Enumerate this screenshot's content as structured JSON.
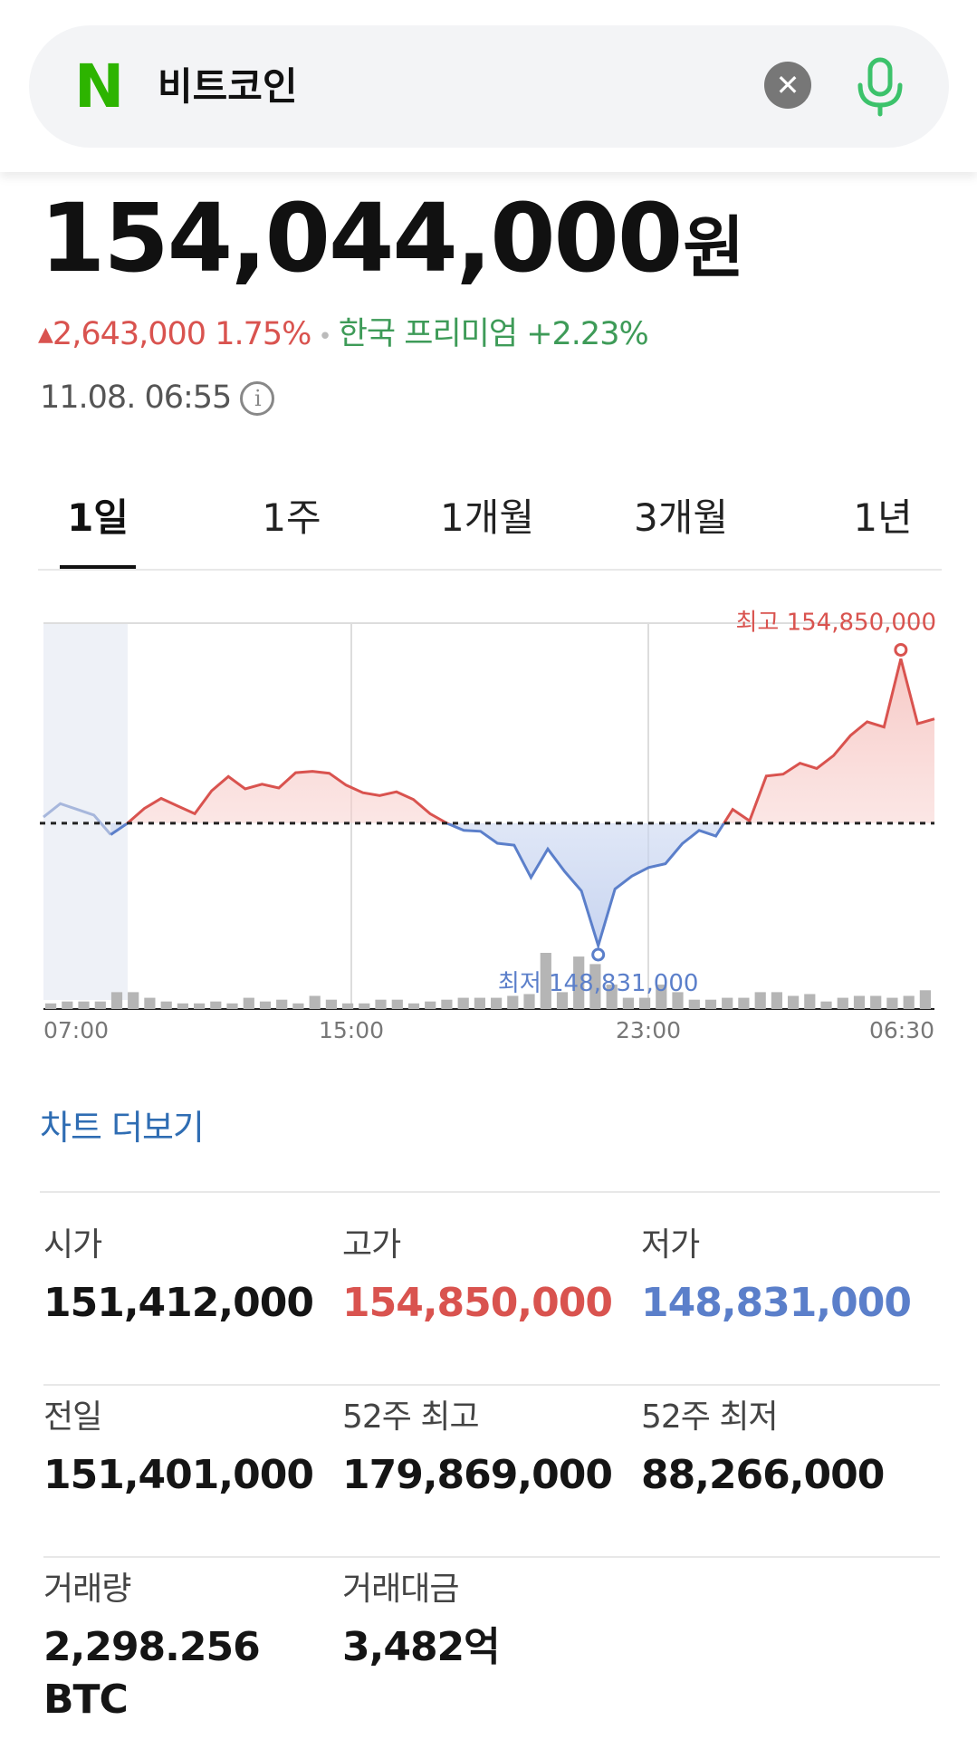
{
  "search": {
    "logo_text": "N",
    "query": "비트코인",
    "clear_icon": "close-icon",
    "mic_icon": "microphone-icon"
  },
  "quote": {
    "price": "154,044,000",
    "unit": "원",
    "change_amount": "2,643,000",
    "change_percent": "1.75%",
    "premium_label": "한국 프리미엄",
    "premium_value": "+2.23%",
    "timestamp": "11.08. 06:55",
    "info_icon": "info-icon"
  },
  "tabs": [
    {
      "label": "1일",
      "active": true
    },
    {
      "label": "1주",
      "active": false
    },
    {
      "label": "1개월",
      "active": false
    },
    {
      "label": "3개월",
      "active": false
    },
    {
      "label": "1년",
      "active": false
    }
  ],
  "chart_data": {
    "type": "line",
    "x_tick_labels": [
      "07:00",
      "15:00",
      "23:00",
      "06:30"
    ],
    "baseline_label": "전일",
    "baseline": 151401000,
    "ylim": [
      147500000,
      155600000
    ],
    "high_label": "최고 154,850,000",
    "low_label": "최저 148,831,000",
    "high": 154850000,
    "low": 148831000,
    "colors": {
      "up": "#d9534f",
      "down": "#5b7fca",
      "grid": "#dddddd",
      "volume": "#b5b5b5"
    },
    "price": [
      151530000,
      151810000,
      151690000,
      151570000,
      151160000,
      151400000,
      151710000,
      151920000,
      151760000,
      151600000,
      152080000,
      152380000,
      152120000,
      152220000,
      152140000,
      152460000,
      152490000,
      152450000,
      152200000,
      152040000,
      151980000,
      152060000,
      151900000,
      151600000,
      151400000,
      151250000,
      151230000,
      150980000,
      150940000,
      150260000,
      150860000,
      150390000,
      149980000,
      148831000,
      150020000,
      150290000,
      150470000,
      150550000,
      150970000,
      151250000,
      151130000,
      151690000,
      151450000,
      152390000,
      152430000,
      152660000,
      152550000,
      152820000,
      153240000,
      153530000,
      153420000,
      154850000,
      153490000,
      153590000
    ],
    "volume": [
      3,
      4,
      4,
      4,
      9,
      9,
      6,
      4,
      3,
      3,
      4,
      3,
      6,
      4,
      5,
      3,
      7,
      5,
      3,
      3,
      5,
      5,
      3,
      4,
      5,
      6,
      6,
      6,
      7,
      8,
      30,
      9,
      28,
      24,
      13,
      6,
      6,
      13,
      9,
      5,
      5,
      6,
      6,
      9,
      9,
      7,
      8,
      4,
      6,
      7,
      7,
      6,
      7,
      10
    ]
  },
  "more_link": "차트 더보기",
  "stats": [
    {
      "label": "시가",
      "value": "151,412,000",
      "tone": "normal"
    },
    {
      "label": "고가",
      "value": "154,850,000",
      "tone": "red"
    },
    {
      "label": "저가",
      "value": "148,831,000",
      "tone": "blue"
    },
    {
      "label": "전일",
      "value": "151,401,000",
      "tone": "normal"
    },
    {
      "label": "52주 최고",
      "value": "179,869,000",
      "tone": "normal"
    },
    {
      "label": "52주 최저",
      "value": "88,266,000",
      "tone": "normal"
    },
    {
      "label": "거래량",
      "value": "2,298.256 BTC",
      "tone": "normal"
    },
    {
      "label": "거래대금",
      "value": "3,482억",
      "tone": "normal"
    }
  ]
}
